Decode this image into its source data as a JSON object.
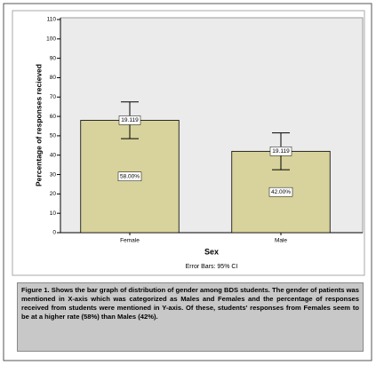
{
  "chart_data": {
    "type": "bar",
    "categories": [
      "Female",
      "Male"
    ],
    "values": [
      58,
      42
    ],
    "value_labels": [
      "58.00%",
      "42.00%"
    ],
    "errors": [
      9.5,
      9.5
    ],
    "error_labels": [
      "19.119",
      "19.119"
    ],
    "color": "#d8d39c",
    "ylim": [
      0,
      110
    ],
    "yticks": [
      0,
      10,
      20,
      30,
      40,
      50,
      60,
      70,
      80,
      90,
      100,
      110
    ],
    "ylabel": "Percentage of responses recieved",
    "xlabel": "Sex",
    "footnote": "Error Bars: 95% CI"
  },
  "caption": "Figure 1. Shows the bar graph of distribution of gender among BDS students. The gender of patients was mentioned in X-axis which was categorized as Males and Females and the percentage of responses received from students were mentioned in Y-axis. Of these, students' responses from Females seem to be at a higher rate (58%) than Males (42%)."
}
